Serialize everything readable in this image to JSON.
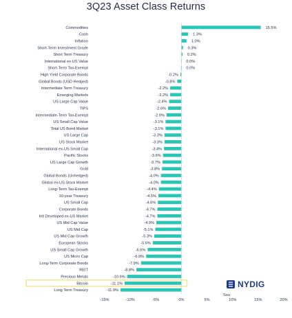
{
  "chart_data": {
    "type": "bar",
    "orientation": "horizontal",
    "title": "3Q23 Asset Class Returns",
    "categories": [
      "Commodities",
      "Cash",
      "Inflation",
      "Short-Term Investment Grade",
      "Short Term Treasury",
      "International ex-US Value",
      "Short-Term Tax-Exempt",
      "High Yield Corporate Bonds",
      "Global Bonds (USD Hedged)",
      "Intermediate Term Treasury",
      "Emerging Markets",
      "US Large Cap Value",
      "TIPS",
      "Intermediate-Term Tax-Exempt",
      "US Small Cap Value",
      "Total US Bond Market",
      "US Large Cap",
      "US Stock Market",
      "International ex-US Small Cap",
      "Pacific Stocks",
      "US Large Cap Growth",
      "Gold",
      "Global Bonds (Unhedged)",
      "Global ex-US Stock Market",
      "Long-Term Tax-Exempt",
      "10-year Treasury",
      "US Small Cap",
      "Corporate Bonds",
      "Intl Developed ex-US Market",
      "US Mid Cap Value",
      "US Mid Cap",
      "US Mid Cap Growth",
      "European Stocks",
      "US Small Cap Growth",
      "US Micro Cap",
      "Long-Term Corporate Bonds",
      "REIT",
      "Precious Metals",
      "Bitcoin",
      "Long Term Treasury"
    ],
    "values": [
      15.5,
      1.3,
      1.0,
      0.3,
      0.2,
      0.0,
      0.0,
      -0.2,
      -0.8,
      -2.2,
      -2.2,
      -2.4,
      -2.6,
      -2.9,
      -3.1,
      -3.1,
      -3.3,
      -3.3,
      -3.4,
      -3.6,
      -3.7,
      -3.8,
      -4.0,
      -4.0,
      -4.4,
      -4.5,
      -4.6,
      -4.7,
      -4.7,
      -4.9,
      -5.1,
      -5.3,
      -5.6,
      -6.6,
      -6.9,
      -7.9,
      -8.8,
      -10.6,
      -11.1,
      -11.9
    ],
    "labels": [
      "15.5%",
      "1.3%",
      "1.0%",
      "0.3%",
      "0.2%",
      "0.0%",
      "0.0%",
      "-0.2%",
      "-0.8%",
      "-2.2%",
      "-2.2%",
      "-2.4%",
      "-2.6%",
      "-2.9%",
      "-3.1%",
      "-3.1%",
      "-3.3%",
      "-3.3%",
      "-3.4%",
      "-3.6%",
      "-3.7%",
      "-3.8%",
      "-4.0%",
      "-4.0%",
      "-4.4%",
      "-4.5%",
      "-4.6%",
      "-4.7%",
      "-4.7%",
      "-4.9%",
      "-5.1%",
      "-5.3%",
      "-5.6%",
      "-6.6%",
      "-6.9%",
      "-7.9%",
      "-8.8%",
      "-10.6%",
      "-11.1%",
      "-11.9%"
    ],
    "highlighted_category": "Bitcoin",
    "xlim": [
      -15,
      20
    ],
    "xticks": [
      -15,
      -10,
      -5,
      0,
      5,
      10,
      15,
      20
    ],
    "xtick_labels": [
      "-15%",
      "-10%",
      "-5%",
      "0%",
      "5%",
      "10%",
      "15%",
      "20%"
    ],
    "bar_color": "#27c6b5",
    "highlight_color": "#f2e79a",
    "grid": false
  },
  "branding": {
    "logo_text": "NYDIG",
    "source_text": "Sou"
  },
  "colors": {
    "title": "#1e2a4a",
    "logo": "#1b3b8b"
  }
}
